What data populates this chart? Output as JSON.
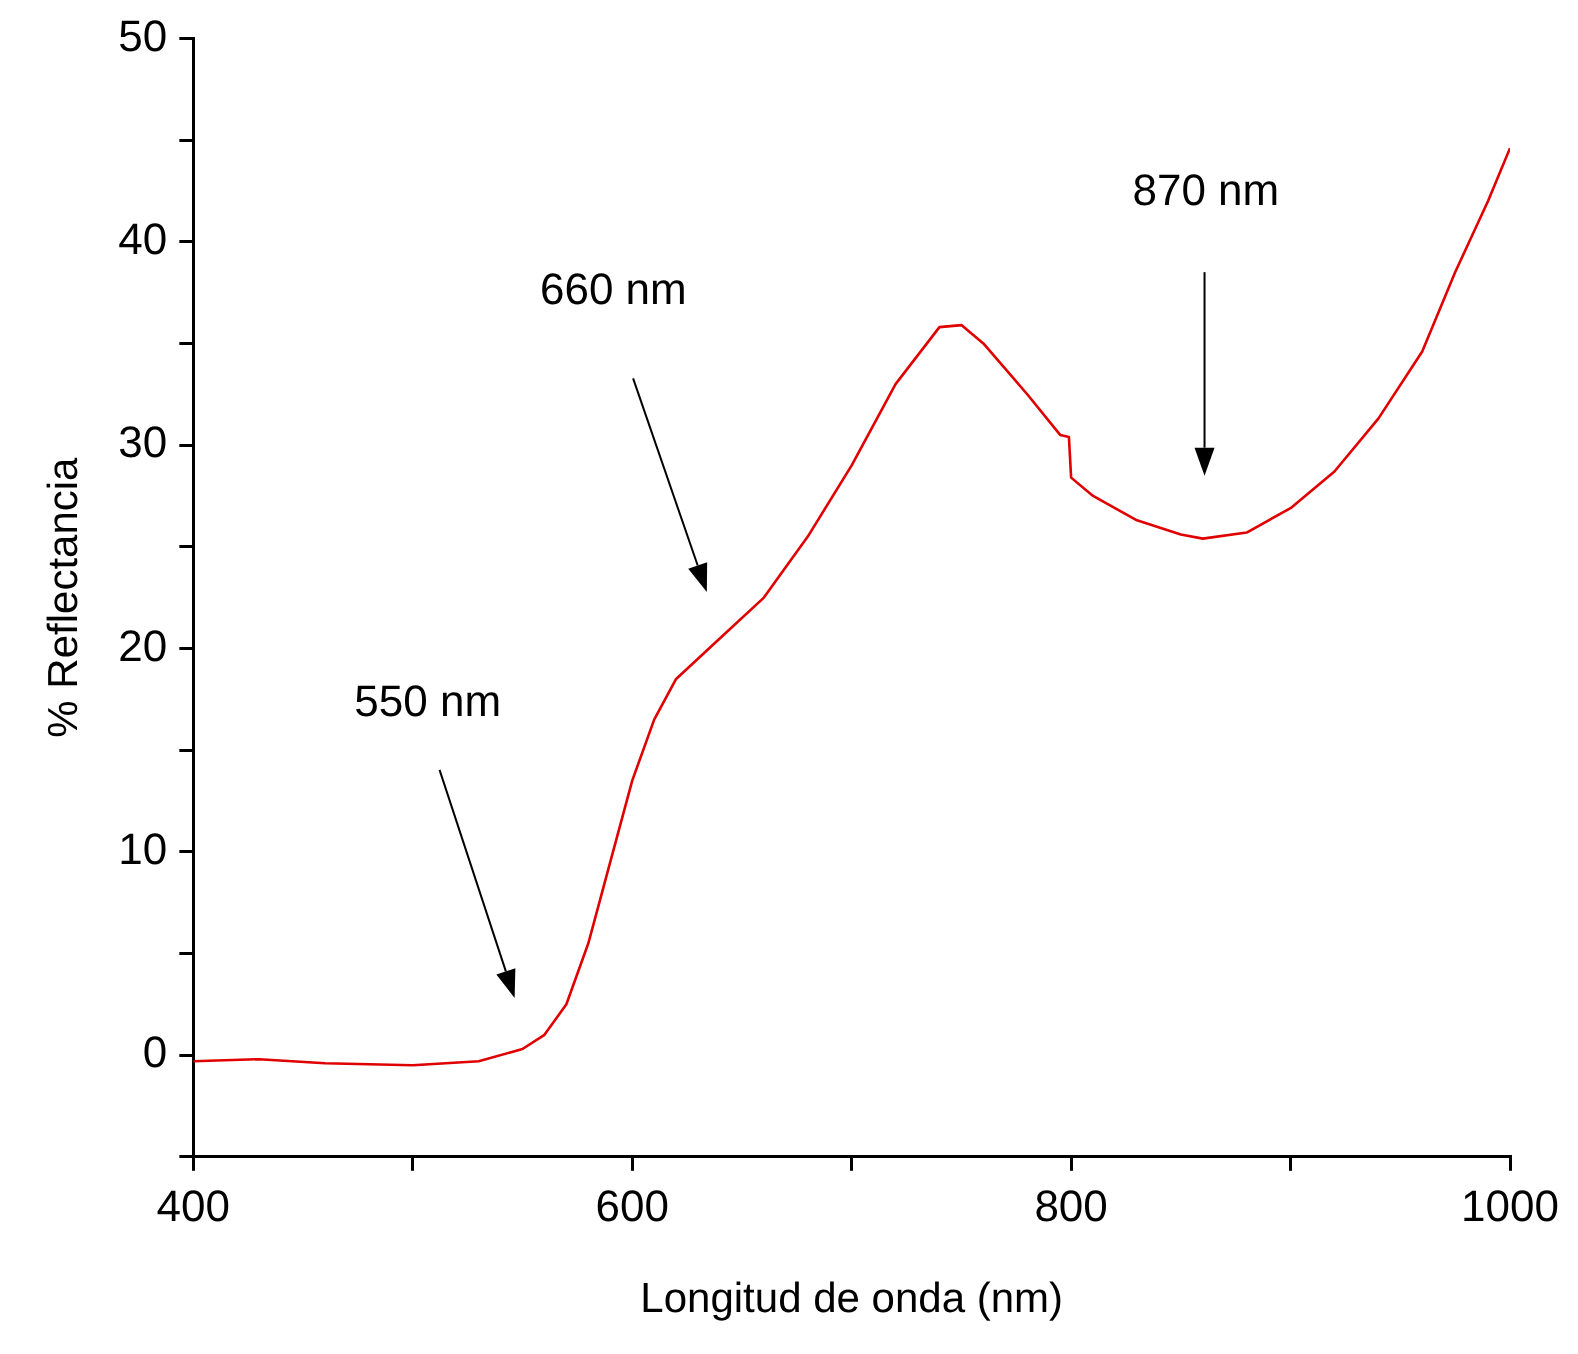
{
  "chart_data": {
    "type": "line",
    "xlabel": "Longitud de onda (nm)",
    "ylabel": "% Reflectancia",
    "xlim": [
      400,
      1000
    ],
    "ylim": [
      -5,
      50
    ],
    "xticks": [
      400,
      {
        "value": 500,
        "label": null
      },
      600,
      {
        "value": 700,
        "label": null
      },
      800,
      {
        "value": 900,
        "label": null
      },
      1000
    ],
    "yticks": [
      {
        "value": -5,
        "label": null
      },
      0,
      {
        "value": 5,
        "label": null
      },
      10,
      {
        "value": 15,
        "label": null
      },
      20,
      {
        "value": 25,
        "label": null
      },
      30,
      {
        "value": 35,
        "label": null
      },
      40,
      {
        "value": 45,
        "label": null
      },
      50
    ],
    "grid": false,
    "marker": "none",
    "line_style": "solid",
    "series": [
      {
        "color": "#e00000",
        "x": [
          400,
          430,
          460,
          500,
          530,
          550,
          560,
          570,
          580,
          590,
          600,
          610,
          620,
          640,
          660,
          680,
          700,
          720,
          740,
          750,
          760,
          780,
          795,
          799,
          800,
          810,
          830,
          850,
          860,
          880,
          900,
          920,
          940,
          960,
          975,
          990,
          1000
        ],
        "values": [
          -0.3,
          -0.2,
          -0.4,
          -0.5,
          -0.3,
          0.3,
          1.0,
          2.5,
          5.5,
          9.5,
          13.5,
          16.5,
          18.5,
          20.5,
          22.5,
          25.5,
          29,
          33,
          35.8,
          35.9,
          35,
          32.5,
          30.5,
          30.4,
          28.4,
          27.5,
          26.3,
          25.6,
          25.4,
          25.7,
          26.9,
          28.7,
          31.3,
          34.6,
          38.5,
          42,
          44.6
        ]
      }
    ],
    "annotations": [
      "550 nm",
      "660 nm",
      "870 nm"
    ]
  }
}
